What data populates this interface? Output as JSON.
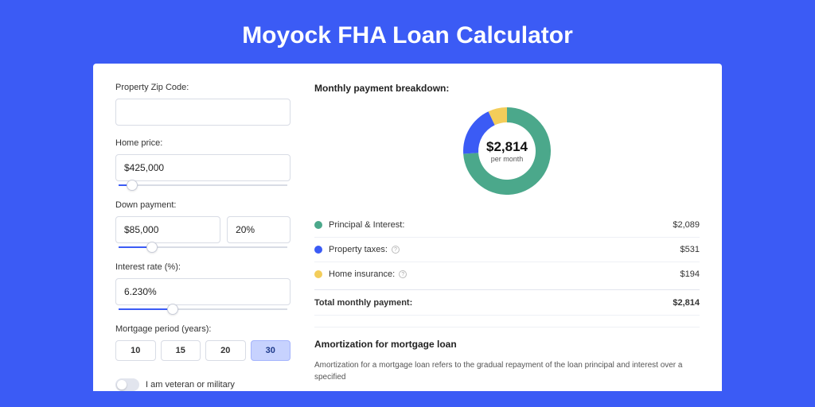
{
  "page_title": "Moyock FHA Loan Calculator",
  "colors": {
    "background": "#3b5bf5",
    "card": "#ffffff",
    "slider_fill": "#3b5bf5",
    "active_period_bg": "#c7d2fe",
    "principal": "#4ba88b",
    "taxes": "#3b5bf5",
    "insurance": "#f3cd5a"
  },
  "form": {
    "zip_label": "Property Zip Code:",
    "zip_value": "",
    "home_price_label": "Home price:",
    "home_price_value": "$425,000",
    "home_price_slider_pct": 8,
    "down_payment_label": "Down payment:",
    "down_payment_value": "$85,000",
    "down_payment_pct_value": "20%",
    "down_payment_slider_pct": 20,
    "interest_rate_label": "Interest rate (%):",
    "interest_rate_value": "6.230%",
    "interest_rate_slider_pct": 32,
    "mortgage_period_label": "Mortgage period (years):",
    "periods": [
      "10",
      "15",
      "20",
      "30"
    ],
    "active_period": "30",
    "veteran_label": "I am veteran or military",
    "veteran_on": false
  },
  "breakdown": {
    "title": "Monthly payment breakdown:",
    "donut": {
      "value_label": "$2,814",
      "sub_label": "per month",
      "slices": [
        {
          "color": "#4ba88b",
          "pct": 74
        },
        {
          "color": "#3b5bf5",
          "pct": 19
        },
        {
          "color": "#f3cd5a",
          "pct": 7
        }
      ]
    },
    "items": [
      {
        "label": "Principal & Interest:",
        "color": "#4ba88b",
        "value": "$2,089",
        "info": false
      },
      {
        "label": "Property taxes:",
        "color": "#3b5bf5",
        "value": "$531",
        "info": true
      },
      {
        "label": "Home insurance:",
        "color": "#f3cd5a",
        "value": "$194",
        "info": true
      }
    ],
    "total_label": "Total monthly payment:",
    "total_value": "$2,814"
  },
  "amortization": {
    "title": "Amortization for mortgage loan",
    "text": "Amortization for a mortgage loan refers to the gradual repayment of the loan principal and interest over a specified"
  }
}
